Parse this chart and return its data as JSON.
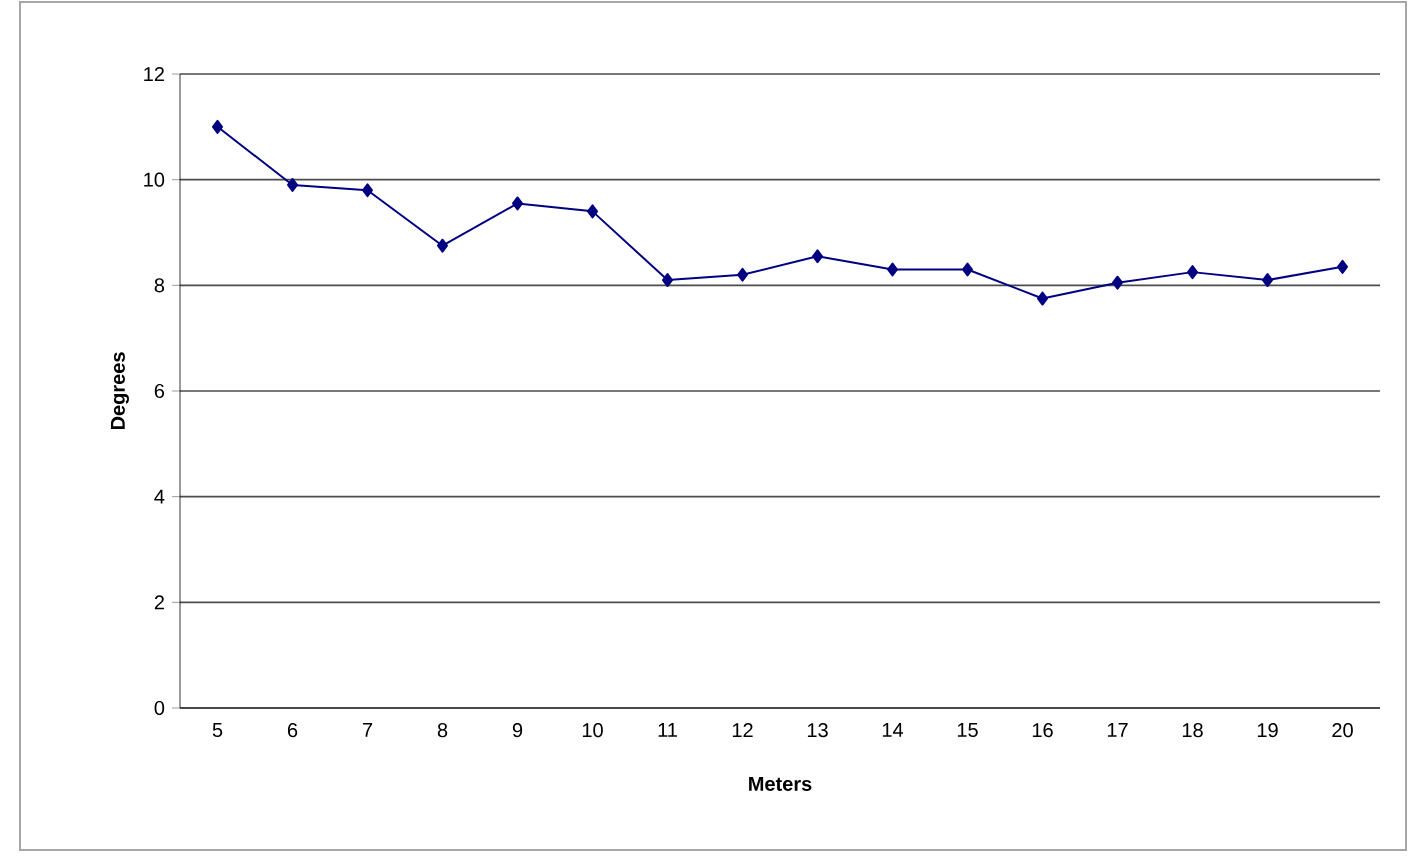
{
  "chart_data": {
    "type": "line",
    "xlabel": "Meters",
    "ylabel": "Degrees",
    "categories": [
      "5",
      "6",
      "7",
      "8",
      "9",
      "10",
      "11",
      "12",
      "13",
      "14",
      "15",
      "16",
      "17",
      "18",
      "19",
      "20"
    ],
    "series": [
      {
        "color": "#000080",
        "values": [
          11.0,
          9.9,
          9.8,
          8.75,
          9.55,
          9.4,
          8.1,
          8.2,
          8.55,
          8.3,
          8.3,
          7.75,
          8.05,
          8.25,
          8.1,
          8.35
        ]
      }
    ],
    "ylim": [
      0,
      12
    ],
    "yticks": [
      0,
      2,
      4,
      6,
      8,
      10,
      12
    ],
    "grid": "y",
    "marker": "diamond",
    "line_style": "solid"
  }
}
